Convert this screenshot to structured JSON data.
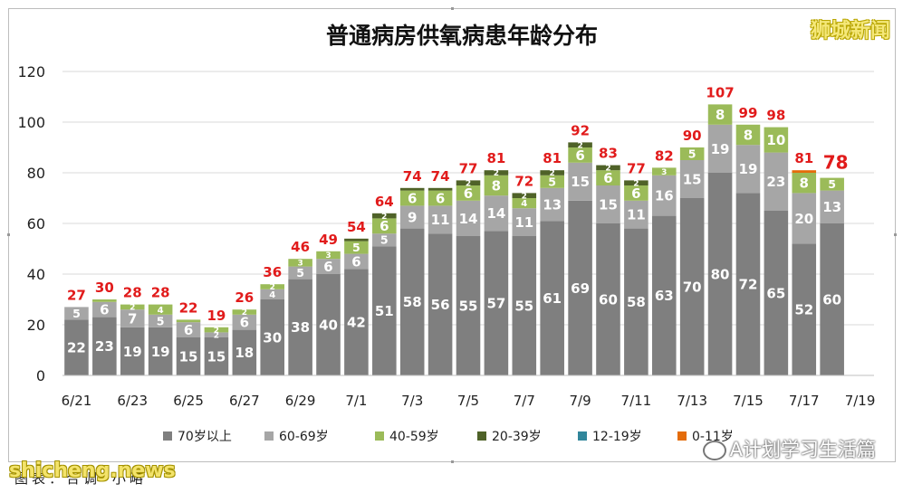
{
  "title": "普通病房供氧病患年龄分布",
  "brand": "狮城新闻",
  "watermark": "A计划学习生活篇",
  "site": "shicheng.news",
  "caption": "图表：合调•小略",
  "chart_data": {
    "type": "bar",
    "stacked": true,
    "title": "普通病房供氧病患年龄分布",
    "ylim": [
      0,
      120
    ],
    "yticks": [
      0,
      20,
      40,
      60,
      80,
      100,
      120
    ],
    "grid": true,
    "legend_position": "bottom",
    "categories": [
      "6/21",
      "6/22",
      "6/23",
      "6/24",
      "6/25",
      "6/26",
      "6/27",
      "6/28",
      "6/29",
      "6/30",
      "7/1",
      "7/2",
      "7/3",
      "7/4",
      "7/5",
      "7/6",
      "7/7",
      "7/8",
      "7/9",
      "7/10",
      "7/11",
      "7/12",
      "7/13",
      "7/14",
      "7/15",
      "7/16",
      "7/17",
      "7/18",
      "7/19"
    ],
    "xtick_labels": [
      "6/21",
      "",
      "6/23",
      "",
      "6/25",
      "",
      "6/27",
      "",
      "6/29",
      "",
      "7/1",
      "",
      "7/3",
      "",
      "7/5",
      "",
      "7/7",
      "",
      "7/9",
      "",
      "7/11",
      "",
      "7/13",
      "",
      "7/15",
      "",
      "7/17",
      "",
      "7/19"
    ],
    "totals": [
      27,
      30,
      28,
      28,
      22,
      19,
      26,
      36,
      46,
      49,
      54,
      64,
      74,
      74,
      77,
      81,
      72,
      81,
      92,
      83,
      77,
      82,
      90,
      107,
      99,
      98,
      81,
      78,
      null
    ],
    "series": [
      {
        "name": "70岁以上",
        "color": "#7f7f7f",
        "label_color": "#ffffff",
        "values": [
          22,
          23,
          19,
          19,
          15,
          15,
          18,
          30,
          38,
          40,
          42,
          51,
          58,
          56,
          55,
          57,
          55,
          61,
          69,
          60,
          58,
          63,
          70,
          80,
          72,
          65,
          52,
          60,
          null
        ]
      },
      {
        "name": "60-69岁",
        "color": "#a6a6a6",
        "label_color": "#ffffff",
        "values": [
          5,
          6,
          7,
          5,
          6,
          2,
          6,
          4,
          5,
          6,
          6,
          5,
          9,
          11,
          14,
          14,
          11,
          13,
          15,
          15,
          11,
          16,
          15,
          19,
          19,
          23,
          20,
          13,
          null
        ]
      },
      {
        "name": "40-59岁",
        "color": "#9bbb59",
        "label_color": "#ffffff",
        "values": [
          0,
          1,
          2,
          4,
          1,
          2,
          2,
          2,
          3,
          3,
          5,
          6,
          6,
          6,
          6,
          8,
          4,
          5,
          6,
          6,
          6,
          3,
          5,
          8,
          8,
          10,
          8,
          5,
          null
        ]
      },
      {
        "name": "20-39岁",
        "color": "#4f6228",
        "label_color": "#ffffff",
        "values": [
          0,
          0,
          0,
          0,
          0,
          0,
          0,
          0,
          0,
          0,
          1,
          2,
          1,
          1,
          2,
          2,
          2,
          2,
          2,
          2,
          2,
          0,
          0,
          0,
          0,
          0,
          0,
          0,
          null
        ]
      },
      {
        "name": "12-19岁",
        "color": "#31869b",
        "label_color": "#ffffff",
        "values": [
          0,
          0,
          0,
          0,
          0,
          0,
          0,
          0,
          0,
          0,
          0,
          0,
          0,
          0,
          0,
          0,
          0,
          0,
          0,
          0,
          0,
          0,
          0,
          0,
          0,
          0,
          0,
          0,
          null
        ]
      },
      {
        "name": "0-11岁",
        "color": "#e46c0a",
        "label_color": "#ffffff",
        "values": [
          0,
          0,
          0,
          0,
          0,
          0,
          0,
          0,
          0,
          0,
          0,
          0,
          0,
          0,
          0,
          0,
          0,
          0,
          0,
          0,
          0,
          0,
          0,
          0,
          0,
          0,
          1,
          0,
          null
        ]
      }
    ],
    "total_label_color": "#e11b1b",
    "highlight_last_total": true
  }
}
